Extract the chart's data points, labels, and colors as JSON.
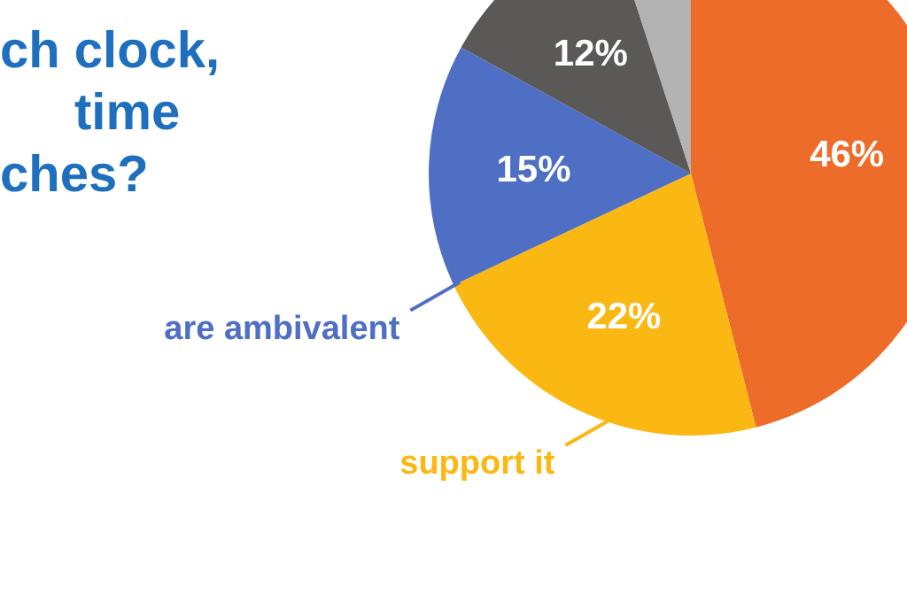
{
  "chart_data": {
    "type": "pie",
    "title": "ch clock,\ntime\nches?",
    "categories": [
      null,
      "support it",
      "are ambivalent",
      null,
      null
    ],
    "values": [
      46,
      22,
      15,
      12,
      5
    ],
    "colors": [
      "#ee6c2a",
      "#fbb812",
      "#4f6fc4",
      "#5b5858",
      "#b3b3b3"
    ],
    "value_labels": [
      "46%",
      "22%",
      "15%",
      "12%",
      null
    ]
  }
}
